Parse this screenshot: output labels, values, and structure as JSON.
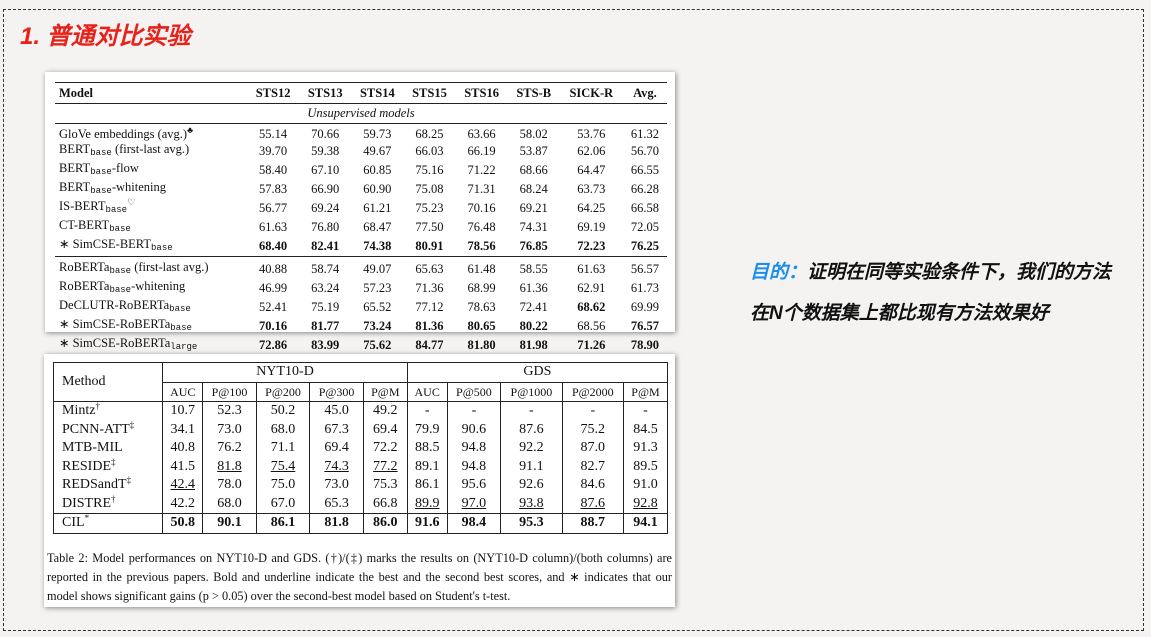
{
  "title": "1. 普通对比实验",
  "table1": {
    "header": [
      "Model",
      "STS12",
      "STS13",
      "STS14",
      "STS15",
      "STS16",
      "STS-B",
      "SICK-R",
      "Avg."
    ],
    "section": "Unsupervised models",
    "groups": [
      [
        {
          "model": {
            "text": "GloVe embeddings (avg.)",
            "sup": "♣"
          },
          "values": [
            "55.14",
            "70.66",
            "59.73",
            "68.25",
            "63.66",
            "58.02",
            "53.76",
            "61.32"
          ]
        },
        {
          "model": {
            "text": "BERT",
            "sub": "base",
            "suffix": " (first-last avg.)"
          },
          "values": [
            "39.70",
            "59.38",
            "49.67",
            "66.03",
            "66.19",
            "53.87",
            "62.06",
            "56.70"
          ]
        },
        {
          "model": {
            "text": "BERT",
            "sub": "base",
            "suffix": "-flow"
          },
          "values": [
            "58.40",
            "67.10",
            "60.85",
            "75.16",
            "71.22",
            "68.66",
            "64.47",
            "66.55"
          ]
        },
        {
          "model": {
            "text": "BERT",
            "sub": "base",
            "suffix": "-whitening"
          },
          "values": [
            "57.83",
            "66.90",
            "60.90",
            "75.08",
            "71.31",
            "68.24",
            "63.73",
            "66.28"
          ]
        },
        {
          "model": {
            "text": "IS-BERT",
            "sub": "base",
            "sup": "♡"
          },
          "values": [
            "56.77",
            "69.24",
            "61.21",
            "75.23",
            "70.16",
            "69.21",
            "64.25",
            "66.58"
          ]
        },
        {
          "model": {
            "text": "CT-BERT",
            "sub": "base"
          },
          "values": [
            "61.63",
            "76.80",
            "68.47",
            "77.50",
            "76.48",
            "74.31",
            "69.19",
            "72.05"
          ]
        },
        {
          "model": {
            "text": "∗ SimCSE-BERT",
            "sub": "base"
          },
          "values": [
            {
              "text": "68.40",
              "bold": true
            },
            {
              "text": "82.41",
              "bold": true
            },
            {
              "text": "74.38",
              "bold": true
            },
            {
              "text": "80.91",
              "bold": true
            },
            {
              "text": "78.56",
              "bold": true
            },
            {
              "text": "76.85",
              "bold": true
            },
            {
              "text": "72.23",
              "bold": true
            },
            {
              "text": "76.25",
              "bold": true
            }
          ]
        }
      ],
      [
        {
          "model": {
            "text": "RoBERTa",
            "sub": "base",
            "suffix": " (first-last avg.)"
          },
          "values": [
            "40.88",
            "58.74",
            "49.07",
            "65.63",
            "61.48",
            "58.55",
            "61.63",
            "56.57"
          ]
        },
        {
          "model": {
            "text": "RoBERTa",
            "sub": "base",
            "suffix": "-whitening"
          },
          "values": [
            "46.99",
            "63.24",
            "57.23",
            "71.36",
            "68.99",
            "61.36",
            "62.91",
            "61.73"
          ]
        },
        {
          "model": {
            "text": "DeCLUTR-RoBERTa",
            "sub": "base"
          },
          "values": [
            "52.41",
            "75.19",
            "65.52",
            "77.12",
            "78.63",
            "72.41",
            {
              "text": "68.62",
              "bold": true
            },
            "69.99"
          ]
        },
        {
          "model": {
            "text": "∗ SimCSE-RoBERTa",
            "sub": "base"
          },
          "values": [
            {
              "text": "70.16",
              "bold": true
            },
            {
              "text": "81.77",
              "bold": true
            },
            {
              "text": "73.24",
              "bold": true
            },
            {
              "text": "81.36",
              "bold": true
            },
            {
              "text": "80.65",
              "bold": true
            },
            {
              "text": "80.22",
              "bold": true
            },
            "68.56",
            {
              "text": "76.57",
              "bold": true
            }
          ]
        },
        {
          "model": {
            "text": "∗ SimCSE-RoBERTa",
            "sub": "large"
          },
          "values": [
            {
              "text": "72.86",
              "bold": true
            },
            {
              "text": "83.99",
              "bold": true
            },
            {
              "text": "75.62",
              "bold": true
            },
            {
              "text": "84.77",
              "bold": true
            },
            {
              "text": "81.80",
              "bold": true
            },
            {
              "text": "81.98",
              "bold": true
            },
            {
              "text": "71.26",
              "bold": true
            },
            {
              "text": "78.90",
              "bold": true
            }
          ]
        }
      ]
    ]
  },
  "table2": {
    "method_header": "Method",
    "groups": [
      "NYT10-D",
      "GDS"
    ],
    "subheader": [
      "AUC",
      "P@100",
      "P@200",
      "P@300",
      "P@M",
      "AUC",
      "P@500",
      "P@1000",
      "P@2000",
      "P@M"
    ],
    "rows": [
      {
        "model": {
          "text": "Mintz",
          "sup": "†"
        },
        "values": [
          "10.7",
          "52.3",
          "50.2",
          "45.0",
          "49.2",
          "-",
          "-",
          "-",
          "-",
          "-"
        ]
      },
      {
        "model": {
          "text": "PCNN-ATT",
          "sup": "‡"
        },
        "values": [
          "34.1",
          "73.0",
          "68.0",
          "67.3",
          "69.4",
          "79.9",
          "90.6",
          "87.6",
          "75.2",
          "84.5"
        ]
      },
      {
        "model": {
          "text": "MTB-MIL"
        },
        "values": [
          "40.8",
          "76.2",
          "71.1",
          "69.4",
          "72.2",
          "88.5",
          "94.8",
          "92.2",
          "87.0",
          "91.3"
        ]
      },
      {
        "model": {
          "text": "RESIDE",
          "sup": "‡"
        },
        "values": [
          "41.5",
          {
            "text": "81.8",
            "underline": true
          },
          {
            "text": "75.4",
            "underline": true
          },
          {
            "text": "74.3",
            "underline": true
          },
          {
            "text": "77.2",
            "underline": true
          },
          "89.1",
          "94.8",
          "91.1",
          "82.7",
          "89.5"
        ]
      },
      {
        "model": {
          "text": "REDSandT",
          "sup": "‡"
        },
        "values": [
          {
            "text": "42.4",
            "underline": true
          },
          "78.0",
          "75.0",
          "73.0",
          "75.3",
          "86.1",
          "95.6",
          "92.6",
          "84.6",
          "91.0"
        ]
      },
      {
        "model": {
          "text": "DISTRE",
          "sup": "†"
        },
        "values": [
          "42.2",
          "68.0",
          "67.0",
          "65.3",
          "66.8",
          {
            "text": "89.9",
            "underline": true
          },
          {
            "text": "97.0",
            "underline": true
          },
          {
            "text": "93.8",
            "underline": true
          },
          {
            "text": "87.6",
            "underline": true
          },
          {
            "text": "92.8",
            "underline": true
          }
        ]
      }
    ],
    "final_row": {
      "model": {
        "text": "CIL",
        "sup": "*"
      },
      "values": [
        {
          "text": "50.8",
          "bold": true
        },
        {
          "text": "90.1",
          "bold": true
        },
        {
          "text": "86.1",
          "bold": true
        },
        {
          "text": "81.8",
          "bold": true
        },
        {
          "text": "86.0",
          "bold": true
        },
        {
          "text": "91.6",
          "bold": true
        },
        {
          "text": "98.4",
          "bold": true
        },
        {
          "text": "95.3",
          "bold": true
        },
        {
          "text": "88.7",
          "bold": true
        },
        {
          "text": "94.1",
          "bold": true
        }
      ]
    },
    "caption": "Table 2:  Model performances on NYT10-D and GDS. (†)/(‡) marks the results on (NYT10-D column)/(both columns) are reported in the previous papers. Bold and underline indicate the best and the second best scores, and ∗ indicates that our model shows significant gains (p > 0.05) over the second-best model based on Student's t-test."
  },
  "purpose": {
    "label": "目的：",
    "text": "证明在同等实验条件下，我们的方法在N个数据集上都比现有方法效果好"
  }
}
